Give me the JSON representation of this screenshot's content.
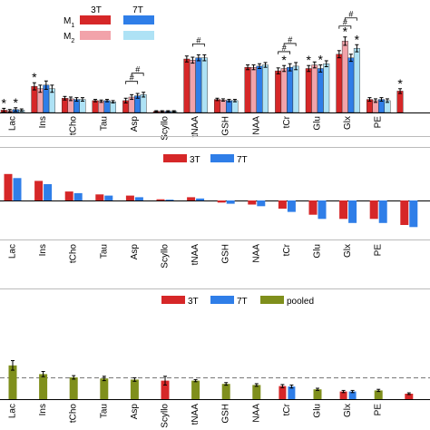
{
  "categories": [
    "Lac",
    "Ins",
    "tCho",
    "Tau",
    "Asp",
    "Scyllo",
    "tNAA",
    "GSH",
    "NAA",
    "tCr",
    "Glu",
    "Glx",
    "PE",
    ""
  ],
  "colors": {
    "red": "#d62728",
    "blue": "#2f7ee8",
    "pink": "#f2a3aa",
    "lightblue": "#aee2f5",
    "olive": "#7f8f1c"
  },
  "chart_data": [
    {
      "type": "bar",
      "legend": {
        "col_labels": [
          "3T",
          "7T"
        ],
        "row_labels": [
          "M1",
          "M2"
        ]
      },
      "ylim": [
        0,
        9
      ],
      "series": [
        {
          "name": "3T M1",
          "values": [
            0.2,
            2.2,
            1.2,
            1.0,
            1.0,
            0.1,
            4.5,
            1.1,
            3.8,
            3.5,
            3.7,
            4.9,
            1.1,
            1.8
          ]
        },
        {
          "name": "3T M2",
          "values": [
            0.15,
            2.0,
            1.15,
            0.95,
            1.3,
            0.1,
            4.4,
            1.05,
            3.8,
            3.7,
            4.0,
            6.0,
            1.0,
            0
          ]
        },
        {
          "name": "7T M1",
          "values": [
            0.25,
            2.3,
            1.1,
            1.0,
            1.4,
            0.1,
            4.6,
            1.0,
            3.9,
            3.8,
            3.7,
            4.6,
            1.1,
            0
          ]
        },
        {
          "name": "7T M2",
          "values": [
            0.2,
            2.0,
            1.1,
            0.9,
            1.5,
            0.1,
            4.6,
            1.0,
            4.0,
            3.9,
            4.1,
            5.4,
            1.0,
            0
          ]
        }
      ],
      "errors": [
        [
          0.15,
          0.3,
          0.15,
          0.1,
          0.2,
          0.05,
          0.25,
          0.1,
          0.2,
          0.25,
          0.25,
          0.3,
          0.15,
          0.2
        ],
        [
          0.1,
          0.3,
          0.15,
          0.1,
          0.2,
          0.05,
          0.25,
          0.1,
          0.2,
          0.25,
          0.25,
          0.35,
          0.15,
          0
        ],
        [
          0.15,
          0.35,
          0.15,
          0.1,
          0.2,
          0.05,
          0.25,
          0.1,
          0.2,
          0.3,
          0.3,
          0.3,
          0.15,
          0
        ],
        [
          0.1,
          0.3,
          0.15,
          0.1,
          0.2,
          0.05,
          0.25,
          0.1,
          0.2,
          0.3,
          0.25,
          0.3,
          0.15,
          0
        ]
      ],
      "annotations": [
        {
          "category": "Lac",
          "series": 0,
          "text": "*"
        },
        {
          "category": "Lac",
          "series": 2,
          "text": "*"
        },
        {
          "category": "Ins",
          "series": 0,
          "text": "*"
        },
        {
          "category": "tCr",
          "series": 1,
          "text": "*"
        },
        {
          "category": "Glu",
          "series": 0,
          "text": "*"
        },
        {
          "category": "Glu",
          "series": 2,
          "text": "*"
        },
        {
          "category": "Glx",
          "series": 1,
          "text": "*"
        },
        {
          "category": "Glx",
          "series": 3,
          "text": "*"
        },
        {
          "category": "",
          "series": 0,
          "text": "*"
        }
      ],
      "brackets": [
        {
          "category": "Asp",
          "from": 0,
          "to": 2,
          "text": "#"
        },
        {
          "category": "Asp",
          "from": 1,
          "to": 3,
          "text": "#"
        },
        {
          "category": "tNAA",
          "from": 1,
          "to": 3,
          "text": "#"
        },
        {
          "category": "tCr",
          "from": 0,
          "to": 2,
          "text": "#"
        },
        {
          "category": "tCr",
          "from": 1,
          "to": 3,
          "text": "#"
        },
        {
          "category": "Glx",
          "from": 0,
          "to": 2,
          "text": "#"
        },
        {
          "category": "Glx",
          "from": 1,
          "to": 3,
          "text": "#"
        }
      ]
    },
    {
      "type": "bar",
      "ylim": [
        -1,
        1
      ],
      "series": [
        {
          "name": "3T",
          "values": [
            0.65,
            0.48,
            0.22,
            0.15,
            0.12,
            0.03,
            0.08,
            -0.05,
            -0.1,
            -0.2,
            -0.35,
            -0.45,
            -0.45,
            -0.6
          ]
        },
        {
          "name": "7T",
          "values": [
            0.55,
            0.4,
            0.18,
            0.12,
            0.08,
            0.02,
            0.05,
            -0.08,
            -0.14,
            -0.28,
            -0.45,
            -0.55,
            -0.55,
            -0.65
          ]
        }
      ]
    },
    {
      "type": "bar",
      "ylim": [
        0,
        2
      ],
      "reference_line": 1.0,
      "series": [
        {
          "name": "3T",
          "values": [
            null,
            null,
            null,
            null,
            null,
            0.85,
            null,
            null,
            null,
            0.6,
            null,
            0.35,
            null,
            0.25
          ]
        },
        {
          "name": "7T",
          "values": [
            null,
            null,
            null,
            null,
            null,
            null,
            null,
            null,
            null,
            0.58,
            null,
            0.35,
            null,
            null
          ]
        },
        {
          "name": "pooled",
          "values": [
            1.55,
            1.15,
            1.0,
            0.95,
            0.9,
            null,
            0.85,
            0.7,
            0.65,
            null,
            0.45,
            null,
            0.4,
            null
          ]
        }
      ],
      "errors": [
        [
          0,
          0,
          0,
          0,
          0,
          0.2,
          0,
          0,
          0,
          0.07,
          0,
          0.05,
          0,
          0.04
        ],
        [
          0,
          0,
          0,
          0,
          0,
          0,
          0,
          0,
          0,
          0.07,
          0,
          0.05,
          0,
          0
        ],
        [
          0.22,
          0.12,
          0.08,
          0.1,
          0.08,
          0,
          0.05,
          0.06,
          0.06,
          0,
          0.05,
          0,
          0.05,
          0
        ]
      ]
    }
  ]
}
